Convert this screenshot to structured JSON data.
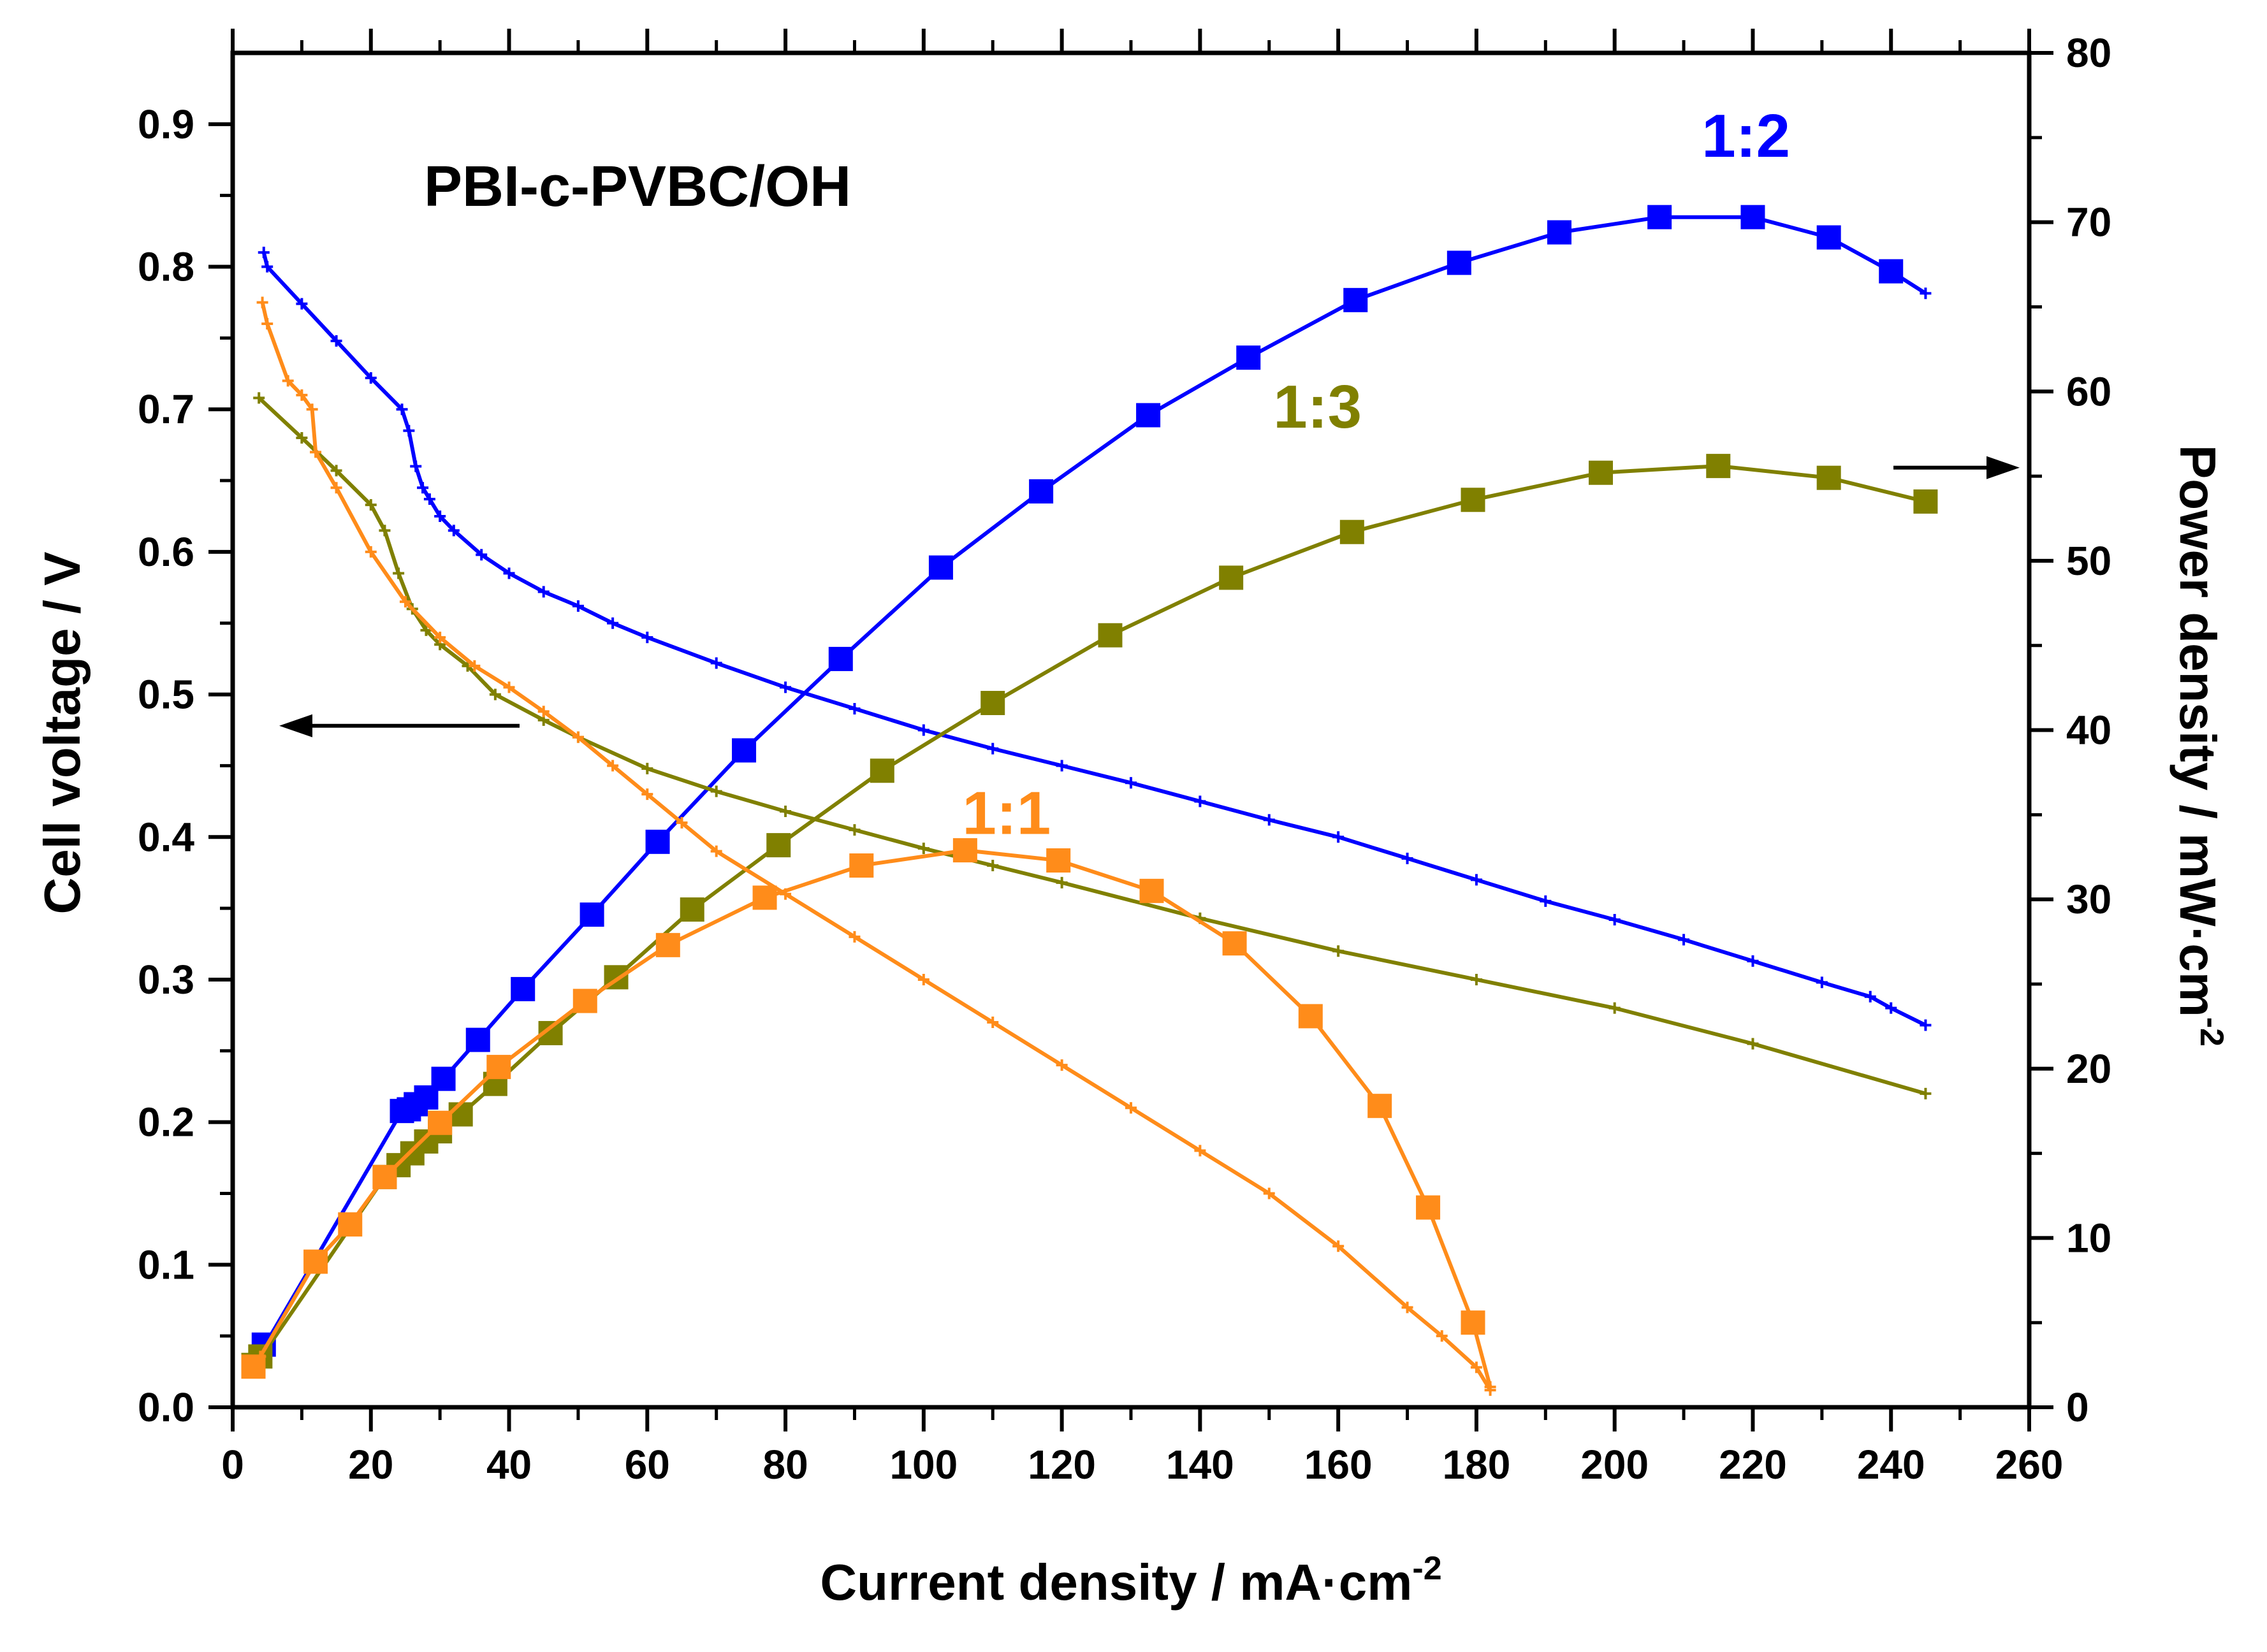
{
  "chart_data": {
    "type": "line",
    "annotation_title": "PBI-c-PVBC/OH",
    "x_axis": {
      "label": "Current density / mA·cm",
      "label_sup": "-2",
      "range": [
        0,
        260
      ],
      "ticks": [
        "0",
        "20",
        "40",
        "60",
        "80",
        "100",
        "120",
        "140",
        "160",
        "180",
        "200",
        "220",
        "240",
        "260"
      ]
    },
    "y_left": {
      "label": "Cell voltage / V",
      "range": [
        0,
        0.95
      ],
      "ticks": [
        "0.0",
        "0.1",
        "0.2",
        "0.3",
        "0.4",
        "0.5",
        "0.6",
        "0.7",
        "0.8",
        "0.9"
      ]
    },
    "y_right": {
      "label": "Power density / mW·cm",
      "label_sup": "-2",
      "range": [
        0,
        80
      ],
      "ticks": [
        "0",
        "10",
        "20",
        "30",
        "40",
        "50",
        "60",
        "70",
        "80"
      ]
    },
    "arrows": [
      {
        "direction": "left",
        "axis": "left"
      },
      {
        "direction": "right",
        "axis": "right"
      }
    ],
    "series": [
      {
        "name": "1:2",
        "color": "#0000ff",
        "label_pos": [
          219,
          75
        ],
        "voltage": {
          "x": [
            4.5,
            5,
            10,
            15,
            20,
            24.5,
            25.5,
            26.5,
            27.5,
            28.5,
            30,
            32,
            36,
            40,
            45,
            50,
            55,
            60,
            70,
            80,
            90,
            100,
            110,
            120,
            130,
            140,
            150,
            160,
            170,
            180,
            190,
            200,
            210,
            220,
            230,
            237,
            240,
            245
          ],
          "y": [
            0.81,
            0.8,
            0.774,
            0.748,
            0.722,
            0.7,
            0.685,
            0.66,
            0.645,
            0.637,
            0.625,
            0.615,
            0.598,
            0.585,
            0.572,
            0.562,
            0.55,
            0.54,
            0.522,
            0.505,
            0.49,
            0.475,
            0.462,
            0.45,
            0.438,
            0.425,
            0.412,
            0.4,
            0.385,
            0.37,
            0.355,
            0.342,
            0.328,
            0.313,
            0.298,
            0.288,
            0.28,
            0.268
          ]
        },
        "power": {
          "x": [
            4.5,
            5,
            24.5,
            25.5,
            26.5,
            28,
            30.5,
            35.5,
            42,
            52,
            61.5,
            74,
            88,
            102.5,
            117,
            132.5,
            147,
            162.5,
            177.5,
            192,
            206.5,
            220,
            231,
            240,
            245
          ],
          "y": [
            3.7,
            3.9,
            17.5,
            17.6,
            17.9,
            18.3,
            19.4,
            21.7,
            24.7,
            29.1,
            33.4,
            38.8,
            44.2,
            49.6,
            54.1,
            58.6,
            62.0,
            65.4,
            67.6,
            69.4,
            70.3,
            70.3,
            69.1,
            67.1,
            65.8
          ]
        },
        "power_markers": [
          0,
          2,
          3,
          4,
          5,
          6,
          7,
          8,
          9,
          10,
          11,
          12,
          13,
          14,
          15,
          16,
          17,
          18,
          19,
          20,
          21,
          22,
          23
        ]
      },
      {
        "name": "1:3",
        "color": "#808000",
        "label_pos": [
          157,
          59
        ],
        "voltage": {
          "x": [
            3.8,
            10,
            15,
            20,
            22,
            24,
            26,
            28,
            30,
            34,
            38,
            45,
            50,
            60,
            70,
            80,
            90,
            100,
            110,
            120,
            140,
            160,
            180,
            200,
            220,
            245
          ],
          "y": [
            0.708,
            0.68,
            0.657,
            0.633,
            0.615,
            0.585,
            0.56,
            0.545,
            0.535,
            0.52,
            0.5,
            0.482,
            0.47,
            0.448,
            0.432,
            0.418,
            0.405,
            0.392,
            0.38,
            0.368,
            0.343,
            0.32,
            0.3,
            0.28,
            0.255,
            0.22
          ]
        },
        "power": {
          "x": [
            3.0,
            3.5,
            4.0,
            4.5,
            22,
            24,
            26,
            28,
            30,
            33,
            38,
            46,
            55.5,
            66.5,
            79,
            94,
            110,
            127,
            144.5,
            162,
            179.5,
            198,
            215,
            231,
            245
          ],
          "y": [
            2.5,
            2.8,
            3.0,
            3.2,
            13.6,
            14.3,
            15.0,
            15.7,
            16.3,
            17.3,
            19.1,
            22.1,
            25.4,
            29.4,
            33.2,
            37.6,
            41.6,
            45.6,
            49.0,
            51.7,
            53.6,
            55.2,
            55.6,
            54.9,
            53.5
          ]
        },
        "power_markers": [
          0,
          2,
          4,
          5,
          6,
          7,
          8,
          9,
          10,
          11,
          12,
          13,
          14,
          15,
          16,
          17,
          18,
          19,
          20,
          21,
          22,
          23,
          24
        ]
      },
      {
        "name": "1:1",
        "color": "#ff8c1a",
        "label_pos": [
          112,
          35
        ],
        "voltage": {
          "x": [
            4.3,
            5,
            8,
            10,
            11.5,
            12,
            15,
            20,
            25,
            30,
            35,
            40,
            45,
            50,
            55,
            60,
            65,
            70,
            80,
            90,
            100,
            110,
            120,
            130,
            140,
            150,
            160,
            170,
            175,
            180,
            182
          ],
          "y": [
            0.775,
            0.76,
            0.72,
            0.71,
            0.7,
            0.67,
            0.645,
            0.6,
            0.565,
            0.54,
            0.52,
            0.505,
            0.488,
            0.47,
            0.45,
            0.43,
            0.41,
            0.39,
            0.36,
            0.33,
            0.3,
            0.27,
            0.24,
            0.21,
            0.18,
            0.15,
            0.113,
            0.07,
            0.05,
            0.028,
            0.012
          ]
        },
        "power": {
          "x": [
            3.0,
            3.5,
            4.0,
            12,
            17,
            22,
            30,
            38.5,
            51,
            63,
            77,
            91,
            106,
            119.5,
            133,
            145,
            156,
            166,
            173,
            179.5,
            182
          ],
          "y": [
            2.4,
            2.7,
            3.0,
            8.6,
            10.8,
            13.6,
            16.8,
            20.1,
            24.0,
            27.3,
            30.1,
            32.0,
            32.9,
            32.3,
            30.5,
            27.4,
            23.1,
            17.8,
            11.8,
            5.0,
            1.2
          ]
        },
        "power_markers": [
          0,
          3,
          4,
          5,
          6,
          7,
          8,
          9,
          10,
          11,
          12,
          13,
          14,
          15,
          16,
          17,
          18,
          19
        ]
      }
    ]
  }
}
